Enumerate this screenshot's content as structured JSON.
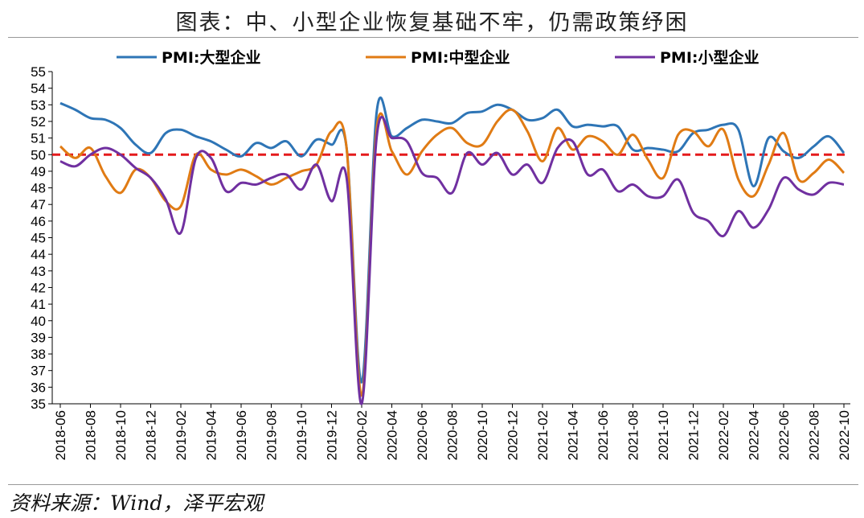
{
  "title": "图表：中、小型企业恢复基础不牢，仍需政策纾困",
  "source": "资料来源：Wind，泽平宏观",
  "chart_data": {
    "type": "line",
    "title": "图表：中、小型企业恢复基础不牢，仍需政策纾困",
    "ylim": [
      35,
      55
    ],
    "yticks": [
      35,
      36,
      37,
      38,
      39,
      40,
      41,
      42,
      43,
      44,
      45,
      46,
      47,
      48,
      49,
      50,
      51,
      52,
      53,
      54,
      55
    ],
    "x": [
      "2018-06",
      "2018-07",
      "2018-08",
      "2018-09",
      "2018-10",
      "2018-11",
      "2018-12",
      "2019-01",
      "2019-02",
      "2019-03",
      "2019-04",
      "2019-05",
      "2019-06",
      "2019-07",
      "2019-08",
      "2019-09",
      "2019-10",
      "2019-11",
      "2019-12",
      "2020-01",
      "2020-02",
      "2020-03",
      "2020-04",
      "2020-05",
      "2020-06",
      "2020-07",
      "2020-08",
      "2020-09",
      "2020-10",
      "2020-11",
      "2020-12",
      "2021-01",
      "2021-02",
      "2021-03",
      "2021-04",
      "2021-05",
      "2021-06",
      "2021-07",
      "2021-08",
      "2021-09",
      "2021-10",
      "2021-11",
      "2021-12",
      "2022-01",
      "2022-02",
      "2022-03",
      "2022-04",
      "2022-05",
      "2022-06",
      "2022-07",
      "2022-08",
      "2022-09",
      "2022-10"
    ],
    "xtick_labels": [
      "2018-06",
      "2018-08",
      "2018-10",
      "2018-12",
      "2019-02",
      "2019-04",
      "2019-06",
      "2019-08",
      "2019-10",
      "2019-12",
      "2020-02",
      "2020-04",
      "2020-06",
      "2020-08",
      "2020-10",
      "2020-12",
      "2021-02",
      "2021-04",
      "2021-06",
      "2021-08",
      "2021-10",
      "2021-12",
      "2022-02",
      "2022-04",
      "2022-06",
      "2022-08",
      "2022-10"
    ],
    "reference_line": {
      "value": 50,
      "color": "#e41a1c",
      "style": "dashed"
    },
    "legend_position": "top",
    "series": [
      {
        "name": "PMI:大型企业",
        "color": "#2e75b6",
        "values": [
          53.1,
          52.7,
          52.2,
          52.1,
          51.6,
          50.6,
          50.1,
          51.3,
          51.5,
          51.1,
          50.8,
          50.3,
          49.9,
          50.7,
          50.4,
          50.8,
          49.9,
          50.9,
          50.6,
          50.4,
          36.3,
          52.6,
          51.1,
          51.6,
          52.1,
          52.0,
          51.9,
          52.5,
          52.6,
          53.0,
          52.7,
          52.1,
          52.2,
          52.7,
          51.7,
          51.8,
          51.7,
          51.7,
          50.3,
          50.4,
          50.3,
          50.2,
          51.3,
          51.5,
          51.8,
          51.5,
          48.1,
          51.0,
          50.2,
          49.8,
          50.5,
          51.1,
          50.1
        ]
      },
      {
        "name": "PMI:中型企业",
        "color": "#e07b14",
        "values": [
          50.5,
          49.8,
          50.4,
          48.7,
          47.7,
          49.1,
          48.6,
          47.2,
          46.9,
          50.0,
          49.1,
          48.8,
          49.1,
          48.7,
          48.2,
          48.6,
          49.0,
          49.4,
          51.4,
          50.4,
          35.5,
          51.6,
          50.2,
          48.8,
          50.2,
          51.2,
          51.6,
          50.7,
          50.6,
          52.0,
          52.7,
          51.4,
          49.6,
          51.6,
          50.3,
          51.1,
          50.8,
          50.0,
          51.2,
          49.7,
          48.6,
          51.2,
          51.4,
          50.5,
          51.5,
          48.5,
          47.5,
          49.4,
          51.3,
          48.5,
          48.9,
          49.7,
          48.9
        ]
      },
      {
        "name": "PMI:小型企业",
        "color": "#7030a0",
        "values": [
          49.6,
          49.3,
          50.0,
          50.4,
          50.0,
          49.2,
          48.6,
          47.3,
          45.3,
          49.8,
          49.8,
          47.8,
          48.3,
          48.2,
          48.6,
          48.8,
          47.9,
          49.4,
          47.2,
          48.6,
          34.1,
          51.1,
          51.0,
          50.8,
          48.9,
          48.6,
          47.7,
          50.1,
          49.4,
          50.1,
          48.8,
          49.4,
          48.3,
          50.4,
          50.8,
          48.8,
          49.1,
          47.8,
          48.2,
          47.5,
          47.5,
          48.5,
          46.5,
          46.0,
          45.1,
          46.6,
          45.6,
          46.7,
          48.6,
          47.9,
          47.6,
          48.3,
          48.2
        ]
      }
    ]
  }
}
